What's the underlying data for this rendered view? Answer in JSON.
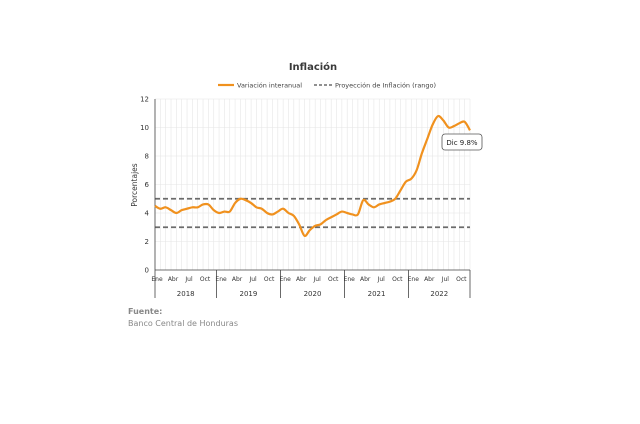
{
  "chart_data": {
    "type": "line",
    "title": "Inflación",
    "ylabel": "Porcentajes",
    "ylim": [
      0,
      12
    ],
    "yticks": [
      "0",
      "2",
      "4",
      "6",
      "8",
      "10",
      "12"
    ],
    "grid": true,
    "legend_position": "top",
    "month_ticks": [
      "Ene",
      "Abr",
      "Jul",
      "Oct"
    ],
    "years": [
      "2018",
      "2019",
      "2020",
      "2021",
      "2022"
    ],
    "x_start": "2018-01",
    "x_end": "2022-12",
    "series": [
      {
        "name": "Variación interanual",
        "color": "#f0911e",
        "style": "solid",
        "values": [
          4.5,
          4.3,
          4.4,
          4.2,
          4.0,
          4.2,
          4.3,
          4.4,
          4.4,
          4.6,
          4.6,
          4.2,
          4.0,
          4.1,
          4.1,
          4.7,
          5.0,
          4.9,
          4.7,
          4.4,
          4.3,
          4.0,
          3.9,
          4.1,
          4.3,
          4.0,
          3.8,
          3.2,
          2.4,
          2.8,
          3.1,
          3.2,
          3.5,
          3.7,
          3.9,
          4.1,
          4.0,
          3.9,
          3.9,
          4.9,
          4.6,
          4.4,
          4.6,
          4.7,
          4.8,
          5.0,
          5.6,
          6.2,
          6.4,
          7.0,
          8.2,
          9.2,
          10.2,
          10.8,
          10.5,
          10.0,
          10.1,
          10.3,
          10.4,
          9.8
        ]
      },
      {
        "name": "Proyección de Inflación (rango)",
        "color": "#6b6b6b",
        "style": "dashed",
        "values_band": [
          3.0,
          5.0
        ]
      }
    ],
    "annotation": "Dic 9.8%"
  },
  "source": {
    "label": "Fuente:",
    "text": "Banco Central de Honduras"
  }
}
